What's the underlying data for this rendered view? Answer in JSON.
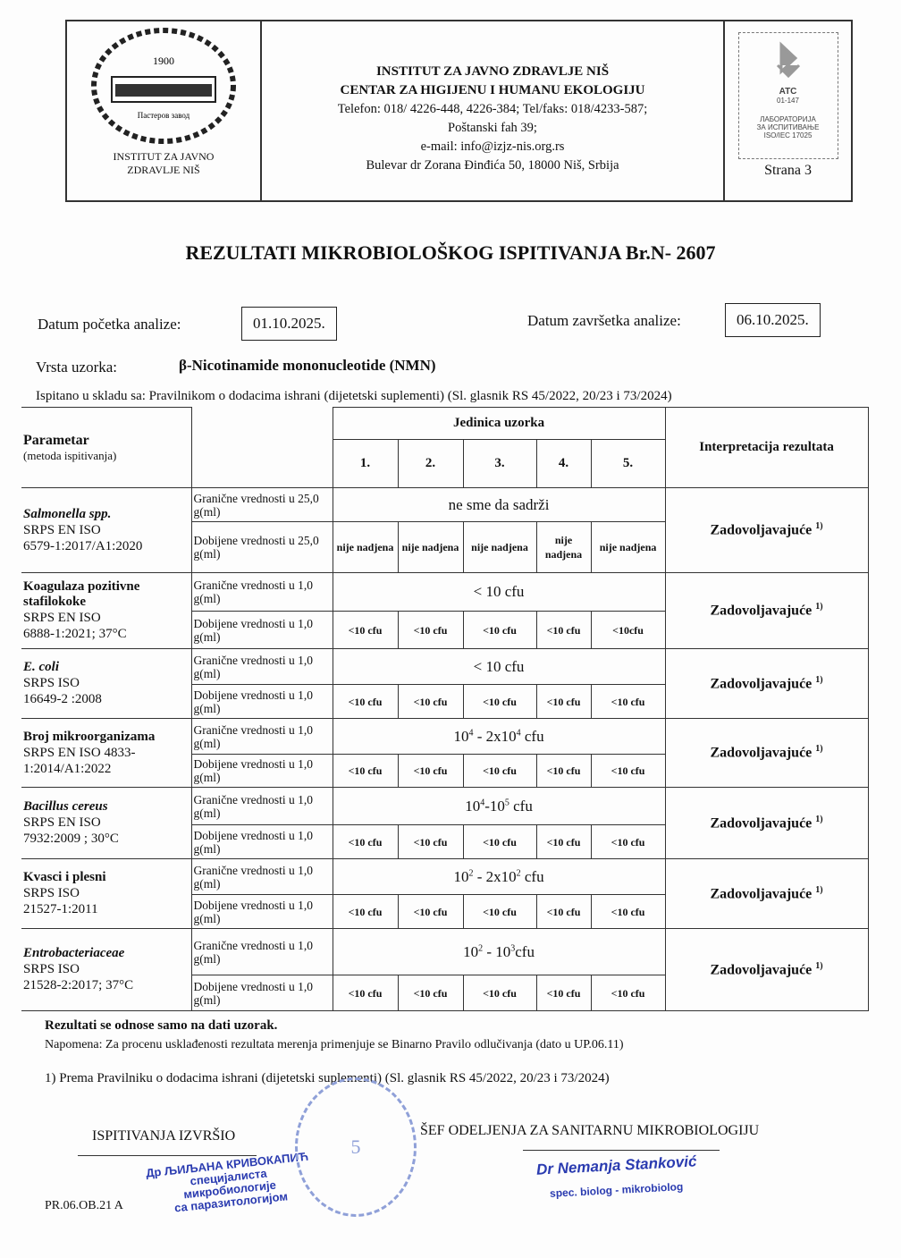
{
  "header": {
    "logo": {
      "year": "1900",
      "building_text": "Пастеров завод",
      "caption_lines": [
        "INSTITUT ZA JAVNO",
        "ZDRAVLJE NIŠ"
      ]
    },
    "institute_lines": [
      "INSTITUT ZA JAVNO ZDRAVLJE NIŠ",
      "CENTAR ZA HIGIJENU I HUMANU EKOLOGIJU"
    ],
    "contact_lines": [
      "Telefon: 018/ 4226-448, 4226-384; Tel/faks: 018/4233-587;",
      "Poštanski fah 39;",
      "e-mail: info@izjz-nis.org.rs",
      "Bulevar dr Zorana Đinđića 50, 18000 Niš, Srbija"
    ],
    "accreditation": {
      "mark": "ATC",
      "number": "01-147",
      "lines": [
        "ЛАБОРАТОРИЈА",
        "ЗА ИСПИТИВАЊЕ",
        "ISO/IEC 17025"
      ]
    },
    "page": "Strana 3"
  },
  "title": "REZULTATI  MIKROBIOLOŠKOG ISPITIVANJA  Br.N- 2607",
  "dates": {
    "start_label": "Datum početka analize:",
    "start": "01.10.2025.",
    "end_label": "Datum završetka analize:",
    "end": "06.10.2025."
  },
  "sample": {
    "label": "Vrsta uzorka:",
    "value": "β-Nicotinamide mononucleotide (NMN)"
  },
  "compliance": "Ispitano u skladu sa: Pravilnikom o dodacima ishrani (dijetetski suplementi) (Sl. glasnik RS 45/2022, 20/23  i 73/2024)",
  "table": {
    "param_header": "Parametar",
    "param_sub": "(metoda ispitivanja)",
    "unit_header": "Jedinica uzorka",
    "unit_cols": [
      "1.",
      "2.",
      "3.",
      "4.",
      "5."
    ],
    "interp_header": "Interpretacija rezultata",
    "rows": [
      {
        "name": "Salmonella spp.",
        "italic": true,
        "method": [
          "SRPS EN ISO",
          "6579-1:2017/A1:2020"
        ],
        "limit_label": "Granične vrednosti u 25,0 g(ml)",
        "obtained_label": "Dobijene vrednosti u 25,0 g(ml)",
        "limit": [
          {
            "t": "ne sme da sadrži"
          }
        ],
        "results": [
          "nije nadjena",
          "nije nadjena",
          "nije nadjena",
          "nije nadjena",
          "nije nadjena"
        ],
        "interp": "Zadovoljavajuće",
        "note": "1)"
      },
      {
        "name": "Koagulaza pozitivne stafilokoke",
        "italic": false,
        "method": [
          "SRPS EN ISO",
          "6888-1:2021; 37°C"
        ],
        "limit_label": "Granične vrednosti u 1,0 g(ml)",
        "obtained_label": "Dobijene vrednosti u 1,0 g(ml)",
        "limit": [
          {
            "t": "< 10 cfu"
          }
        ],
        "results": [
          "<10 cfu",
          "<10 cfu",
          "<10 cfu",
          "<10 cfu",
          "<10cfu"
        ],
        "interp": "Zadovoljavajuće",
        "note": "1)"
      },
      {
        "name": "E. coli",
        "italic": true,
        "method": [
          "SRPS ISO",
          "16649-2 :2008"
        ],
        "limit_label": "Granične vrednosti u 1,0 g(ml)",
        "obtained_label": "Dobijene vrednosti u 1,0 g(ml)",
        "limit": [
          {
            "t": "< 10 cfu"
          }
        ],
        "results": [
          "<10 cfu",
          "<10 cfu",
          "<10 cfu",
          "<10 cfu",
          "<10 cfu"
        ],
        "interp": "Zadovoljavajuće",
        "note": "1)"
      },
      {
        "name": "Broj mikroorganizama",
        "italic": false,
        "method": [
          "SRPS EN ISO 4833-",
          "1:2014/A1:2022"
        ],
        "limit_label": "Granične vrednosti u 1,0 g(ml)",
        "obtained_label": "Dobijene vrednosti u 1,0 g(ml)",
        "limit": [
          {
            "t": "10"
          },
          {
            "s": "4"
          },
          {
            "t": " - 2x10"
          },
          {
            "s": "4"
          },
          {
            "t": " cfu"
          }
        ],
        "results": [
          "<10 cfu",
          "<10 cfu",
          "<10 cfu",
          "<10 cfu",
          "<10 cfu"
        ],
        "interp": "Zadovoljavajuće",
        "note": "1)"
      },
      {
        "name": "Bacillus cereus",
        "italic": true,
        "method": [
          "SRPS EN ISO",
          "7932:2009 ; 30°C"
        ],
        "limit_label": "Granične vrednosti u 1,0 g(ml)",
        "obtained_label": "Dobijene vrednosti u 1,0 g(ml)",
        "limit": [
          {
            "t": "10"
          },
          {
            "s": "4"
          },
          {
            "t": "-10"
          },
          {
            "s": "5"
          },
          {
            "t": " cfu"
          }
        ],
        "results": [
          "<10 cfu",
          "<10 cfu",
          "<10 cfu",
          "<10 cfu",
          "<10 cfu"
        ],
        "interp": "Zadovoljavajuće",
        "note": "1)"
      },
      {
        "name": "Kvasci  i plesni",
        "italic": false,
        "method": [
          "SRPS ISO",
          "21527-1:2011"
        ],
        "limit_label": "Granične vrednosti u 1,0 g(ml)",
        "obtained_label": "Dobijene  vrednosti u 1,0 g(ml)",
        "limit": [
          {
            "t": "10"
          },
          {
            "s": "2"
          },
          {
            "t": " - 2x10"
          },
          {
            "s": "2"
          },
          {
            "t": " cfu"
          }
        ],
        "results": [
          "<10 cfu",
          "<10 cfu",
          "<10 cfu",
          "<10 cfu",
          "<10 cfu"
        ],
        "interp": "Zadovoljavajuće",
        "note": "1)"
      },
      {
        "name": "Entrobacteriaceae",
        "italic": true,
        "method": [
          "SRPS ISO",
          "21528-2:2017; 37°C"
        ],
        "limit_label": "Granične vrednosti u 1,0 g(ml)",
        "obtained_label": "Dobijene vrednosti u 1,0 g(ml)",
        "limit": [
          {
            "t": "10"
          },
          {
            "s": "2"
          },
          {
            "t": " - 10"
          },
          {
            "s": "3"
          },
          {
            "t": "cfu"
          }
        ],
        "results": [
          "<10 cfu",
          "<10 cfu",
          "<10 cfu",
          "<10 cfu",
          "<10 cfu"
        ],
        "interp": "Zadovoljavajuće",
        "note": "1)"
      }
    ]
  },
  "footer": {
    "results_note": "Rezultati se odnose samo na dati uzorak.",
    "napomena": "Napomena: Za procenu usklađenosti rezultata merenja primenjuje se Binarno Pravilo odlučivanja (dato u UP.06.11)",
    "footnote": "1) Prema Pravilniku o dodacima ishrani (dijetetski suplementi) (Sl. glasnik RS 45/2022, 20/23  i 73/2024)",
    "left_sign_label": "ISPITIVANJA IZVRŠIO",
    "left_stamp": [
      "Др ЉИЉАНА КРИВОКАПИЋ",
      "специјалиста",
      "микробиологије",
      "са паразитологијом"
    ],
    "right_sign_label": "ŠEF ODELJENJA ZA SANITARNU MIKROBIOLOGIJU",
    "right_stamp": [
      "Dr Nemanja Stanković",
      "spec. biolog - mikrobiolog"
    ],
    "seal_number": "5",
    "form_code": "PR.06.OB.21 A"
  },
  "colors": {
    "stamp_blue": "#2a3bb0"
  }
}
